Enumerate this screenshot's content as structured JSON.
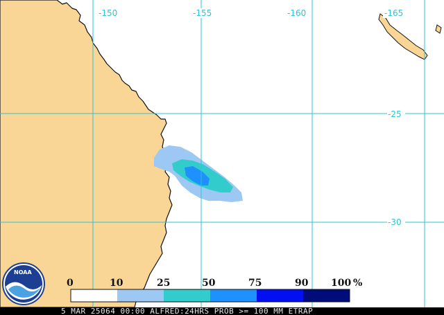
{
  "map": {
    "longitude_labels": [
      "-150",
      "-155",
      "-160",
      "-165"
    ],
    "latitude_labels": [
      "-25",
      "-30"
    ],
    "colors": {
      "ocean": "#ffffff",
      "land": "#f9d696",
      "coastline": "#111111",
      "gridline": "#2ec4d6",
      "caption_background": "#000000"
    }
  },
  "legend": {
    "tick_labels": [
      "0",
      "10",
      "25",
      "50",
      "75",
      "90",
      "100"
    ],
    "unit": "%",
    "bins": [
      {
        "range": "0-10",
        "color": "#ffffff"
      },
      {
        "range": "10-25",
        "color": "#9ec8f4"
      },
      {
        "range": "25-50",
        "color": "#33cccc"
      },
      {
        "range": "50-75",
        "color": "#1e90ff"
      },
      {
        "range": "75-90",
        "color": "#0010f0"
      },
      {
        "range": "90-100",
        "color": "#000c7a"
      }
    ]
  },
  "caption": "5 MAR 25064 00:00 ALFRED:24HRS PROB >= 100 MM ETRAP",
  "logo": {
    "text": "NOAA",
    "icon": "noaa-logo"
  }
}
